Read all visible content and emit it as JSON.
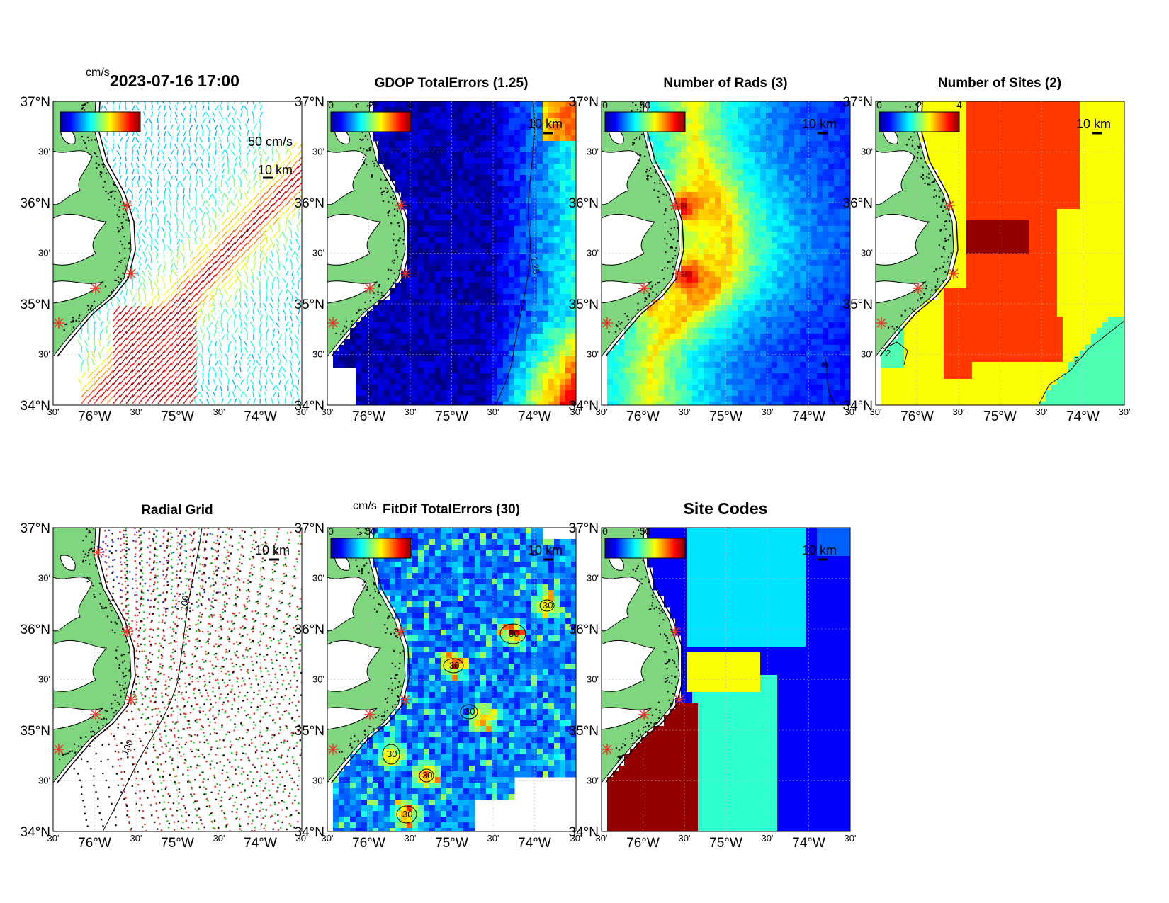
{
  "colors": {
    "land": "#7fd67f",
    "water": "#ffffff",
    "site_marker": "#e8352a",
    "coast": "#000000"
  },
  "common": {
    "lat_labels": [
      "37°N",
      "30'",
      "36°N",
      "30'",
      "35°N",
      "30'",
      "34°N"
    ],
    "lon_labels": [
      "30'",
      "76°W",
      "30'",
      "75°W",
      "30'",
      "74°W",
      "30'"
    ],
    "scale_bar": "10 km"
  },
  "panels": [
    {
      "key": "currents",
      "title": "2023-07-16 17:00",
      "colorbar_unit": "cm/s",
      "colorbar_ticks": [],
      "vector_scale_label": "50 cm/s",
      "scale_bar": "10 km",
      "field": "speed"
    },
    {
      "key": "gdop",
      "title": "GDOP TotalErrors (1.25)",
      "colorbar_unit": "",
      "colorbar_ticks": [
        "0",
        "2",
        "4"
      ],
      "contour_label": "1.25",
      "scale_bar": "10 km",
      "field": "gdop"
    },
    {
      "key": "nrads",
      "title": "Number of Rads (3)",
      "colorbar_unit": "",
      "colorbar_ticks": [
        "0",
        "50"
      ],
      "contour_label": "3",
      "scale_bar": "10 km",
      "field": "nrads"
    },
    {
      "key": "nsites",
      "title": "Number of Sites (2)",
      "colorbar_unit": "",
      "colorbar_ticks": [
        "0",
        "2",
        "4"
      ],
      "contour_label": "2",
      "scale_bar": "10 km",
      "field": "nsites"
    },
    {
      "key": "radialgrid",
      "title": "Radial Grid",
      "colorbar_unit": "",
      "colorbar_ticks": [],
      "contour_label": "100",
      "scale_bar": "10 km",
      "field": "radial"
    },
    {
      "key": "fitdif",
      "title": "FitDif TotalErrors (30)",
      "colorbar_unit": "cm/s",
      "colorbar_ticks": [
        "0",
        "50"
      ],
      "contour_label": "30",
      "scale_bar": "10 km",
      "field": "fitdif"
    },
    {
      "key": "sitecodes",
      "title": "Site Codes",
      "colorbar_unit": "",
      "colorbar_ticks": [
        "0",
        "50"
      ],
      "scale_bar": "10 km",
      "field": "sitecodes"
    }
  ]
}
